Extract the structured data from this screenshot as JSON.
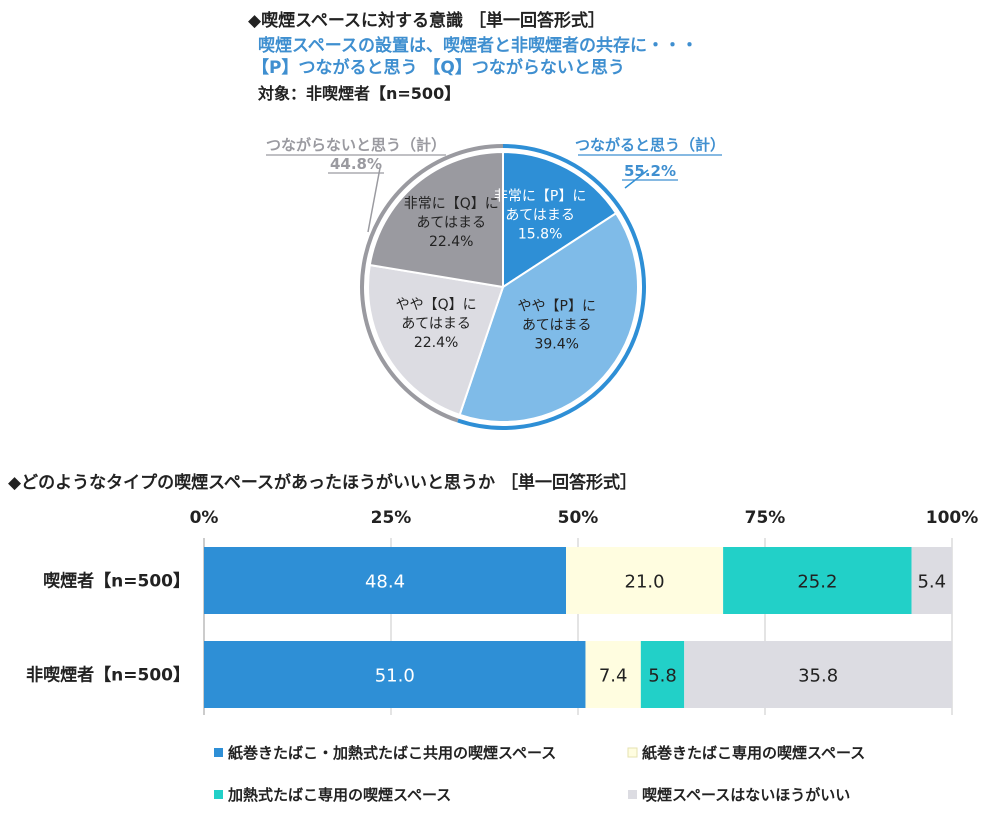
{
  "pie_section": {
    "title": "◆喫煙スペースに対する意識 ［単一回答形式］",
    "question": "喫煙スペースの設置は、喫煙者と非喫煙者の共存に・・・",
    "options": "【P】つながると思う 【Q】つながらないと思う",
    "target": "対象：非喫煙者【n=500】",
    "group_p_label": "つながると思う（計）",
    "group_p_value": "55.2%",
    "group_q_label": "つながらないと思う（計）",
    "group_q_value": "44.8%"
  },
  "bar_section": {
    "title": "◆どのようなタイプの喫煙スペースがあったほうがいいと思うか ［単一回答形式］"
  },
  "chart_data": [
    {
      "type": "pie",
      "slices": [
        {
          "label_lines": [
            "非常に【P】に",
            "あてはまる",
            "15.8%"
          ],
          "value": 15.8,
          "color": "#2e8fd6"
        },
        {
          "label_lines": [
            "やや【P】に",
            "あてはまる",
            "39.4%"
          ],
          "value": 39.4,
          "color": "#7fbbe8"
        },
        {
          "label_lines": [
            "やや【Q】に",
            "あてはまる",
            "22.4%"
          ],
          "value": 22.4,
          "color": "#dcdce2"
        },
        {
          "label_lines": [
            "非常に【Q】に",
            "あてはまる",
            "22.4%"
          ],
          "value": 22.4,
          "color": "#9a9aa0"
        }
      ]
    },
    {
      "type": "bar",
      "orientation": "horizontal",
      "stacked": true,
      "categories": [
        "喫煙者【n=500】",
        "非喫煙者【n=500】"
      ],
      "tick_labels": [
        "0%",
        "25%",
        "50%",
        "75%",
        "100%"
      ],
      "xlim": [
        0,
        100
      ],
      "series": [
        {
          "name": "紙巻きたばこ・加熱式たばこ共用の喫煙スペース",
          "values": [
            48.4,
            51.0
          ],
          "color": "#2e8fd6"
        },
        {
          "name": "紙巻きたばこ専用の喫煙スペース",
          "values": [
            21.0,
            7.4
          ],
          "color": "#fffde0"
        },
        {
          "name": "加熱式たばこ専用の喫煙スペース",
          "values": [
            25.2,
            5.8
          ],
          "color": "#22d0c8"
        },
        {
          "name": "喫煙スペースはないほうがいい",
          "values": [
            5.4,
            35.8
          ],
          "color": "#dcdce2"
        }
      ],
      "data_labels": [
        [
          "48.4",
          "21.0",
          "25.2",
          "5.4"
        ],
        [
          "51.0",
          "7.4",
          "5.8",
          "35.8"
        ]
      ],
      "legend_position": "bottom"
    }
  ]
}
